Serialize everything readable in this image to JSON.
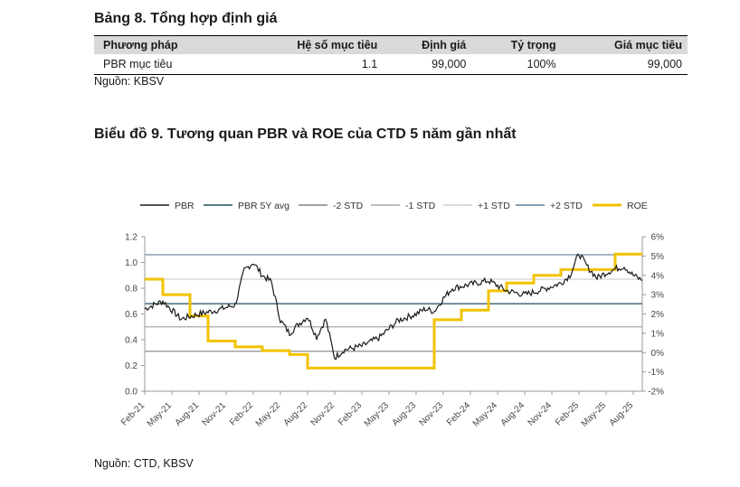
{
  "table_title": "Bảng 8. Tổng hợp định giá",
  "table": {
    "headers": [
      "Phương pháp",
      "Hệ số mục tiêu",
      "Định giá",
      "Tỷ trọng",
      "Giá mục tiêu"
    ],
    "row": [
      "PBR mục tiêu",
      "1.1",
      "99,000",
      "100%",
      "99,000"
    ]
  },
  "table_source": "Nguồn: KBSV",
  "chart_title": "Biểu đồ 9. Tương quan PBR và ROE của CTD 5 năm gần nhất",
  "chart_source": "Nguồn: CTD, KBSV",
  "colors": {
    "pbr": "#1a1a1a",
    "avg": "#1f4e5f",
    "std2m": "#808080",
    "std1m": "#a6a6a6",
    "std1p": "#d0d0d0",
    "std2p": "#5f7f99",
    "roe": "#f2c200"
  },
  "chart_data": {
    "type": "line",
    "title": "",
    "legend": [
      "PBR",
      "PBR 5Y avg",
      "-2 STD",
      "-1 STD",
      "+1 STD",
      "+2 STD",
      "ROE"
    ],
    "legend_position": "top",
    "x_ticks": [
      "Feb-21",
      "May-21",
      "Aug-21",
      "Nov-21",
      "Feb-22",
      "May-22",
      "Aug-22",
      "Nov-22",
      "Feb-23",
      "May-23",
      "Aug-23",
      "Nov-23",
      "Feb-24",
      "May-24",
      "Aug-24",
      "Nov-24",
      "Feb-25",
      "May-25",
      "Aug-25"
    ],
    "y_left": {
      "range": [
        0,
        1.2
      ],
      "ticks": [
        "0.0",
        "0.2",
        "0.4",
        "0.6",
        "0.8",
        "1.0",
        "1.2"
      ]
    },
    "y_right": {
      "range": [
        -2,
        6
      ],
      "ticks": [
        "-2%",
        "-1%",
        "0%",
        "1%",
        "2%",
        "3%",
        "4%",
        "5%",
        "6%"
      ]
    },
    "bands": {
      "pbr_5y_avg": 0.68,
      "minus_2_std": 0.31,
      "minus_1_std": 0.5,
      "plus_1_std": 0.87,
      "plus_2_std": 1.06
    },
    "pbr_series": {
      "x": [
        "Feb-21",
        "Apr-21",
        "Jun-21",
        "Aug-21",
        "Oct-21",
        "Dec-21",
        "Jan-22",
        "Feb-22",
        "Mar-22",
        "Apr-22",
        "May-22",
        "Jun-22",
        "Jul-22",
        "Aug-22",
        "Sep-22",
        "Oct-22",
        "Nov-22",
        "Dec-22",
        "Feb-23",
        "Apr-23",
        "Jun-23",
        "Aug-23",
        "Sep-23",
        "Oct-23",
        "Nov-23",
        "Dec-23",
        "Feb-24",
        "Apr-24",
        "Jun-24",
        "Aug-24",
        "Oct-24",
        "Dec-24",
        "Jan-25",
        "Feb-25",
        "Mar-25",
        "Apr-25",
        "May-25",
        "Jun-25",
        "Jul-25",
        "Aug-25",
        "Sep-25"
      ],
      "values": [
        0.64,
        0.7,
        0.56,
        0.6,
        0.63,
        0.67,
        0.94,
        1.0,
        0.9,
        0.85,
        0.55,
        0.45,
        0.52,
        0.58,
        0.42,
        0.56,
        0.26,
        0.32,
        0.35,
        0.42,
        0.55,
        0.6,
        0.64,
        0.62,
        0.72,
        0.8,
        0.83,
        0.86,
        0.78,
        0.75,
        0.79,
        0.84,
        0.9,
        1.07,
        0.96,
        0.88,
        0.92,
        0.95,
        0.97,
        0.9,
        0.86
      ]
    },
    "roe_series": {
      "x": [
        "Feb-21",
        "Apr-21",
        "Jul-21",
        "Sep-21",
        "Dec-21",
        "Mar-22",
        "Jun-22",
        "Aug-22",
        "Nov-22",
        "Feb-23",
        "May-23",
        "Sep-23",
        "Oct-23",
        "Jan-24",
        "Apr-24",
        "Jun-24",
        "Sep-24",
        "Dec-24",
        "Mar-25",
        "Jun-25",
        "Sep-25"
      ],
      "values": [
        3.8,
        3.0,
        1.9,
        0.6,
        0.3,
        0.1,
        -0.1,
        -0.8,
        -0.8,
        -0.8,
        -0.8,
        -0.8,
        1.7,
        2.2,
        3.2,
        3.6,
        4.0,
        4.3,
        4.3,
        5.1,
        5.1
      ]
    }
  }
}
